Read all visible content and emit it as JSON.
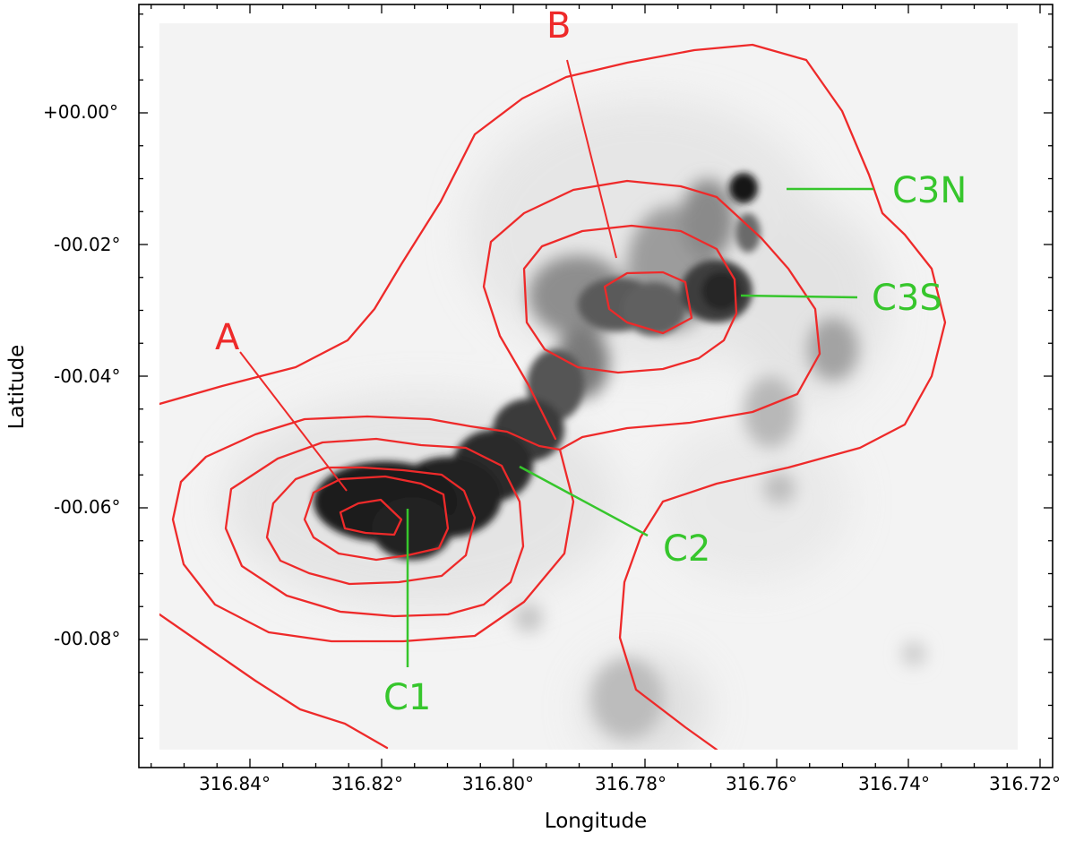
{
  "axes": {
    "xlabel": "Longitude",
    "ylabel": "Latitude",
    "x_tick_labels": [
      "316.84°",
      "316.82°",
      "316.80°",
      "316.78°",
      "316.76°",
      "316.74°",
      "316.72°"
    ],
    "y_tick_labels": [
      "+00.00°",
      "-00.02°",
      "-00.04°",
      "-00.06°",
      "-00.08°"
    ]
  },
  "annotations": {
    "A": "A",
    "B": "B",
    "C1": "C1",
    "C2": "C2",
    "C3N": "C3N",
    "C3S": "C3S"
  },
  "colors": {
    "contour": "#ee2a2a",
    "green_labels": "#36c62c",
    "background": "#f2f2f2"
  },
  "image": {
    "type": "grayscale astronomical map with red contours",
    "x_range_deg": [
      316.855,
      316.72
    ],
    "y_range_deg": [
      0.017,
      -0.1
    ]
  }
}
